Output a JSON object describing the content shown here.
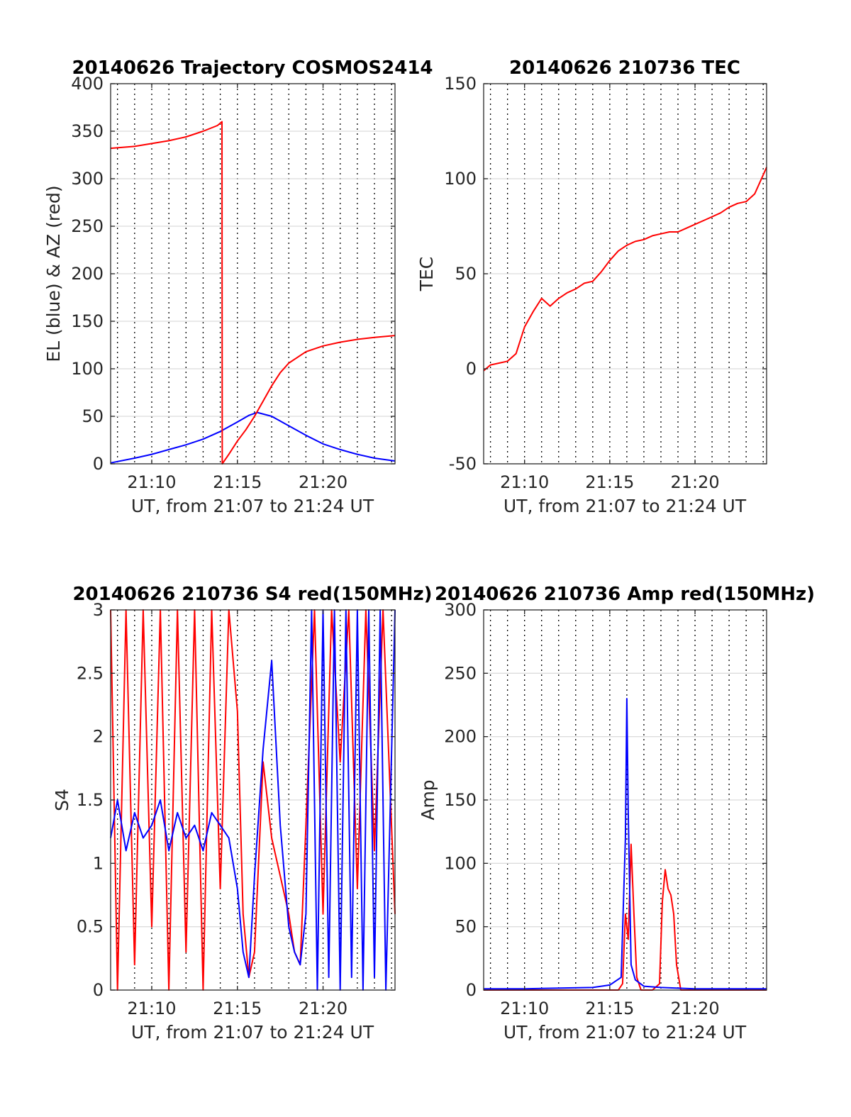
{
  "figure": {
    "x_axis_label": "UT, from 21:07 to 21:24 UT",
    "x_range_utc": [
      "21:07:36",
      "21:24:12"
    ],
    "x_ticks": [
      "21:10",
      "21:15",
      "21:20"
    ],
    "colors": {
      "el": "#0000ff",
      "az": "#ff0000",
      "s4_red": "#ff0000",
      "s4_blue": "#0000ff",
      "tec": "#ff0000",
      "amp_red": "#ff0000",
      "amp_blue": "#0000ff"
    }
  },
  "chart_data": [
    {
      "type": "line",
      "title": "20140626 Trajectory COSMOS2414",
      "xlabel": "UT, from 21:07 to 21:24 UT",
      "ylabel": "EL (blue) & AZ (red)",
      "ylim": [
        0,
        400
      ],
      "yticks": [
        "0",
        "50",
        "100",
        "150",
        "200",
        "250",
        "300",
        "350",
        "400"
      ],
      "grid": "on",
      "series": [
        {
          "name": "EL",
          "color": "#0000ff",
          "x": [
            "21:07:36",
            "21:09:00",
            "21:10:00",
            "21:11:00",
            "21:12:00",
            "21:13:00",
            "21:14:00",
            "21:15:00",
            "21:15:40",
            "21:16:10",
            "21:17:00",
            "21:18:00",
            "21:19:00",
            "21:20:00",
            "21:21:00",
            "21:22:00",
            "21:23:00",
            "21:24:12"
          ],
          "y": [
            1,
            6,
            10,
            15,
            20,
            26,
            34,
            44,
            51,
            54,
            50,
            40,
            30,
            21,
            15,
            10,
            6,
            3
          ]
        },
        {
          "name": "AZ",
          "color": "#ff0000",
          "x": [
            "21:07:36",
            "21:09:00",
            "21:10:00",
            "21:11:00",
            "21:12:00",
            "21:13:00",
            "21:13:50",
            "21:14:06",
            "21:14:07",
            "21:14:30",
            "21:15:00",
            "21:15:30",
            "21:16:00",
            "21:16:30",
            "21:17:00",
            "21:17:30",
            "21:18:00",
            "21:19:00",
            "21:20:00",
            "21:21:00",
            "21:22:00",
            "21:23:00",
            "21:24:12"
          ],
          "y": [
            332,
            334,
            337,
            340,
            344,
            350,
            356,
            360,
            0,
            10,
            24,
            36,
            50,
            66,
            82,
            96,
            106,
            118,
            124,
            128,
            131,
            133,
            135
          ]
        }
      ]
    },
    {
      "type": "line",
      "title": "20140626 210736 TEC",
      "xlabel": "UT, from 21:07 to 21:24 UT",
      "ylabel": "TEC",
      "ylim": [
        -50,
        150
      ],
      "yticks": [
        "-50",
        "0",
        "50",
        "100",
        "150"
      ],
      "grid": "on",
      "series": [
        {
          "color": "#ff0000",
          "x": [
            "21:07:36",
            "21:08:00",
            "21:08:30",
            "21:09:00",
            "21:09:30",
            "21:10:00",
            "21:10:30",
            "21:11:00",
            "21:11:30",
            "21:12:00",
            "21:12:30",
            "21:13:00",
            "21:13:30",
            "21:14:00",
            "21:14:30",
            "21:15:00",
            "21:15:30",
            "21:16:00",
            "21:16:30",
            "21:17:00",
            "21:17:30",
            "21:18:00",
            "21:18:30",
            "21:19:00",
            "21:19:30",
            "21:20:00",
            "21:20:30",
            "21:21:00",
            "21:21:30",
            "21:22:00",
            "21:22:30",
            "21:23:00",
            "21:23:30",
            "21:24:12"
          ],
          "y": [
            -1,
            2,
            3,
            4,
            8,
            22,
            30,
            37,
            33,
            37,
            40,
            42,
            45,
            46,
            51,
            57,
            62,
            65,
            67,
            68,
            70,
            71,
            72,
            72,
            74,
            76,
            78,
            80,
            82,
            85,
            87,
            88,
            92,
            106
          ]
        }
      ]
    },
    {
      "type": "line",
      "title": "20140626 210736 S4 red(150MHz)",
      "xlabel": "UT, from 21:07 to 21:24 UT",
      "ylabel": "S4",
      "ylim": [
        0,
        3
      ],
      "yticks": [
        "0",
        "0.5",
        "1",
        "1.5",
        "2",
        "2.5",
        "3"
      ],
      "grid": "on",
      "series": [
        {
          "color": "#ff0000",
          "x": [
            "21:07:36",
            "21:08:00",
            "21:08:30",
            "21:09:00",
            "21:09:30",
            "21:10:00",
            "21:10:30",
            "21:11:00",
            "21:11:30",
            "21:12:00",
            "21:12:30",
            "21:13:00",
            "21:13:30",
            "21:14:00",
            "21:14:30",
            "21:15:00",
            "21:15:20",
            "21:15:40",
            "21:16:00",
            "21:16:30",
            "21:17:00",
            "21:17:30",
            "21:18:00",
            "21:18:20",
            "21:18:40",
            "21:19:00",
            "21:19:30",
            "21:20:00",
            "21:20:30",
            "21:21:00",
            "21:21:30",
            "21:22:00",
            "21:22:30",
            "21:23:00",
            "21:23:30",
            "21:24:12"
          ],
          "y": [
            3,
            0,
            3,
            0.2,
            3,
            0.5,
            3,
            0,
            3,
            0.3,
            3,
            0,
            3,
            0.8,
            3,
            2.2,
            0.6,
            0.1,
            0.3,
            1.8,
            1.2,
            0.9,
            0.6,
            0.3,
            0.2,
            1.3,
            3,
            0.6,
            3,
            1.8,
            3,
            0.8,
            3,
            1.1,
            3,
            0.6
          ]
        },
        {
          "color": "#0000ff",
          "x": [
            "21:07:36",
            "21:08:00",
            "21:08:30",
            "21:09:00",
            "21:09:30",
            "21:10:00",
            "21:10:30",
            "21:11:00",
            "21:11:30",
            "21:12:00",
            "21:12:30",
            "21:13:00",
            "21:13:30",
            "21:14:00",
            "21:14:30",
            "21:15:00",
            "21:15:20",
            "21:15:40",
            "21:16:00",
            "21:16:30",
            "21:17:00",
            "21:17:30",
            "21:18:00",
            "21:18:20",
            "21:18:40",
            "21:19:00",
            "21:19:20",
            "21:19:40",
            "21:20:00",
            "21:20:20",
            "21:20:40",
            "21:21:00",
            "21:21:20",
            "21:21:40",
            "21:22:00",
            "21:22:20",
            "21:22:40",
            "21:23:00",
            "21:23:20",
            "21:23:40",
            "21:24:12"
          ],
          "y": [
            1.2,
            1.5,
            1.1,
            1.4,
            1.2,
            1.3,
            1.5,
            1.1,
            1.4,
            1.2,
            1.3,
            1.1,
            1.4,
            1.3,
            1.2,
            0.8,
            0.3,
            0.1,
            0.9,
            1.9,
            2.6,
            1.3,
            0.5,
            0.3,
            0.2,
            0.6,
            3,
            0,
            3,
            0.1,
            3,
            0,
            3,
            0.1,
            3,
            0,
            3,
            0.1,
            3,
            0,
            3
          ]
        }
      ]
    },
    {
      "type": "line",
      "title": "20140626 210736 Amp red(150MHz)",
      "xlabel": "UT, from 21:07 to 21:24 UT",
      "ylabel": "Amp",
      "ylim": [
        0,
        300
      ],
      "yticks": [
        "0",
        "50",
        "100",
        "150",
        "200",
        "250",
        "300"
      ],
      "grid": "on",
      "series": [
        {
          "color": "#ff0000",
          "x": [
            "21:07:36",
            "21:15:30",
            "21:15:45",
            "21:15:55",
            "21:16:05",
            "21:16:15",
            "21:16:25",
            "21:16:35",
            "21:16:50",
            "21:17:30",
            "21:17:55",
            "21:18:05",
            "21:18:15",
            "21:18:25",
            "21:18:35",
            "21:18:45",
            "21:18:55",
            "21:19:10",
            "21:24:12"
          ],
          "y": [
            0,
            0,
            5,
            60,
            40,
            115,
            60,
            10,
            0,
            0,
            5,
            70,
            95,
            80,
            75,
            60,
            20,
            0,
            0
          ]
        },
        {
          "color": "#0000ff",
          "x": [
            "21:07:36",
            "21:10:00",
            "21:14:00",
            "21:15:00",
            "21:15:40",
            "21:15:55",
            "21:16:00",
            "21:16:05",
            "21:16:15",
            "21:16:30",
            "21:17:00",
            "21:18:00",
            "21:20:00",
            "21:24:12"
          ],
          "y": [
            1,
            1,
            2,
            4,
            10,
            120,
            230,
            140,
            20,
            8,
            3,
            2,
            1,
            1
          ]
        }
      ]
    }
  ]
}
